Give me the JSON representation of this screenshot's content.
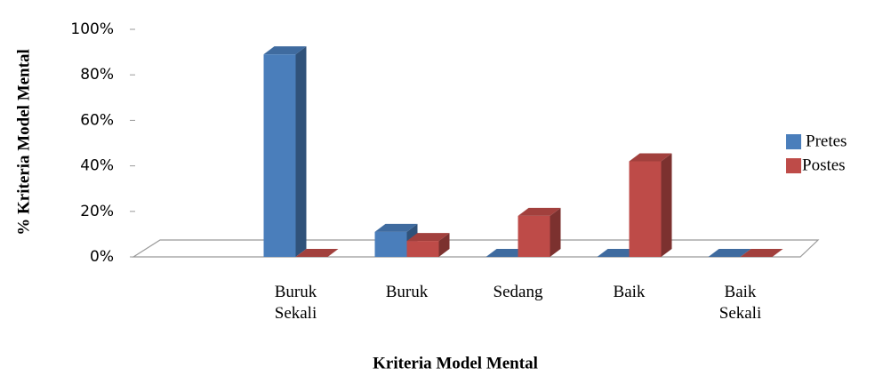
{
  "chart_data": {
    "type": "bar3d",
    "y_label": "% Kriteria Model Mental",
    "x_label": "Kriteria Model Mental",
    "categories": [
      "Buruk Sekali",
      "Buruk",
      "Sedang",
      "Baik",
      "Baik Sekali"
    ],
    "series": [
      {
        "name": "Pretes",
        "color": "#4a7ebb",
        "values": [
          89,
          11,
          0,
          0,
          0
        ]
      },
      {
        "name": "Postes",
        "color": "#be4b48",
        "values": [
          0,
          7,
          18,
          42,
          0
        ]
      }
    ],
    "ylim": [
      0,
      100
    ],
    "yticks": [
      {
        "value": 0,
        "label": "0%"
      },
      {
        "value": 20,
        "label": "20%"
      },
      {
        "value": 40,
        "label": "40%"
      },
      {
        "value": 60,
        "label": "60%"
      },
      {
        "value": 80,
        "label": "80%"
      },
      {
        "value": 100,
        "label": "100%"
      }
    ],
    "legend": "right"
  }
}
